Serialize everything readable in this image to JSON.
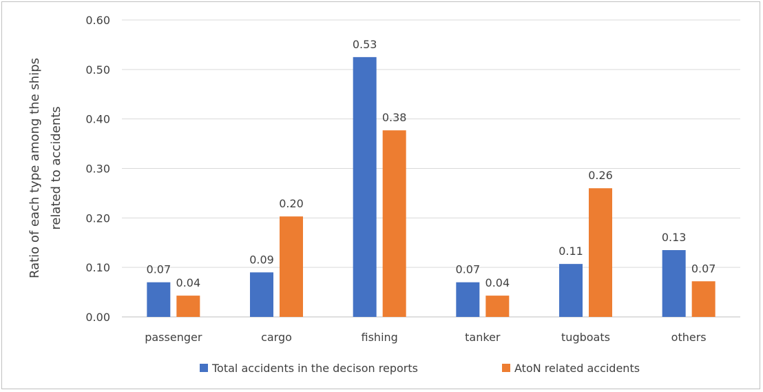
{
  "chart_data": {
    "type": "bar",
    "title": "",
    "xlabel": "",
    "ylabel": [
      "Ratio of each type among the ships",
      "related to accidents"
    ],
    "categories": [
      "passenger",
      "cargo",
      "fishing",
      "tanker",
      "tugboats",
      "others"
    ],
    "series": [
      {
        "name": "Total accidents in the decison reports",
        "color": "#4472C4",
        "values": [
          0.07,
          0.09,
          0.525,
          0.07,
          0.107,
          0.135
        ],
        "labels": [
          "0.07",
          "0.09",
          "0.53",
          "0.07",
          "0.11",
          "0.13"
        ]
      },
      {
        "name": "AtoN related accidents",
        "color": "#ED7D31",
        "values": [
          0.043,
          0.203,
          0.377,
          0.043,
          0.26,
          0.072
        ],
        "labels": [
          "0.04",
          "0.20",
          "0.38",
          "0.04",
          "0.26",
          "0.07"
        ]
      }
    ],
    "ylim": [
      0,
      0.6
    ],
    "yticks": [
      "0.00",
      "0.10",
      "0.20",
      "0.30",
      "0.40",
      "0.50",
      "0.60"
    ],
    "grid": true,
    "legend": "bottom"
  }
}
